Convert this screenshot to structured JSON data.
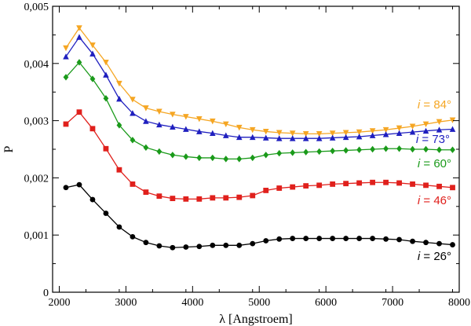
{
  "chart_data": {
    "type": "line",
    "title": "",
    "xlabel": "λ [Angstroem]",
    "ylabel": "P",
    "xlim": [
      1900,
      8000
    ],
    "ylim": [
      0,
      0.005
    ],
    "xticks": [
      2000,
      3000,
      4000,
      5000,
      6000,
      7000,
      8000
    ],
    "xtick_labels": [
      "2000",
      "3000",
      "4000",
      "5000",
      "6000",
      "7000",
      "8000"
    ],
    "yticks": [
      0,
      0.001,
      0.002,
      0.003,
      0.004,
      0.005
    ],
    "ytick_labels": [
      "0",
      "0,001",
      "0,002",
      "0,003",
      "0,004",
      "0,005"
    ],
    "x_minor_step": 500,
    "y_minor_step": 0.0005,
    "grid": false,
    "x": [
      2100,
      2300,
      2500,
      2700,
      2900,
      3100,
      3300,
      3500,
      3700,
      3900,
      4100,
      4300,
      4500,
      4700,
      4900,
      5100,
      5300,
      5500,
      5700,
      5900,
      6100,
      6300,
      6500,
      6700,
      6900,
      7100,
      7300,
      7500,
      7700,
      7900
    ],
    "series": [
      {
        "name": "i = 84°",
        "label_prefix": "i",
        "label_suffix": " = 84°",
        "color": "#f5a623",
        "marker": "triangle-down",
        "values": [
          0.00427,
          0.00462,
          0.00432,
          0.00402,
          0.00365,
          0.00337,
          0.00322,
          0.00316,
          0.00311,
          0.00307,
          0.00303,
          0.00299,
          0.00294,
          0.00288,
          0.00284,
          0.00281,
          0.00279,
          0.00278,
          0.00277,
          0.00277,
          0.00278,
          0.00279,
          0.0028,
          0.00282,
          0.00284,
          0.00287,
          0.0029,
          0.00294,
          0.00298,
          0.00301
        ]
      },
      {
        "name": "i = 73°",
        "label_prefix": "i",
        "label_suffix": " = 73°",
        "color": "#1f1fbf",
        "marker": "triangle-up",
        "values": [
          0.00412,
          0.00446,
          0.00417,
          0.0038,
          0.00338,
          0.00313,
          0.00299,
          0.00293,
          0.00289,
          0.00285,
          0.00281,
          0.00278,
          0.00274,
          0.00271,
          0.00271,
          0.0027,
          0.00269,
          0.00269,
          0.00269,
          0.00269,
          0.0027,
          0.00271,
          0.00272,
          0.00274,
          0.00276,
          0.00278,
          0.0028,
          0.00282,
          0.00284,
          0.00285
        ]
      },
      {
        "name": "i = 60°",
        "label_prefix": "i",
        "label_suffix": " = 60°",
        "color": "#1a9a1a",
        "marker": "diamond",
        "values": [
          0.00376,
          0.00402,
          0.00373,
          0.00339,
          0.00292,
          0.00266,
          0.00253,
          0.00246,
          0.0024,
          0.00237,
          0.00235,
          0.00235,
          0.00233,
          0.00233,
          0.00235,
          0.0024,
          0.00243,
          0.00244,
          0.00245,
          0.00246,
          0.00247,
          0.00248,
          0.00249,
          0.0025,
          0.00251,
          0.00251,
          0.0025,
          0.0025,
          0.00249,
          0.00249
        ]
      },
      {
        "name": "i = 46°",
        "label_prefix": "i",
        "label_suffix": " = 46°",
        "color": "#e0201c",
        "marker": "square",
        "values": [
          0.00294,
          0.00315,
          0.00286,
          0.00251,
          0.00214,
          0.00189,
          0.00175,
          0.00168,
          0.00164,
          0.00163,
          0.00163,
          0.00165,
          0.00165,
          0.00166,
          0.00169,
          0.00178,
          0.00182,
          0.00184,
          0.00186,
          0.00187,
          0.00189,
          0.0019,
          0.00191,
          0.00192,
          0.00192,
          0.00191,
          0.00189,
          0.00187,
          0.00185,
          0.00183
        ]
      },
      {
        "name": "i = 26°",
        "label_prefix": "i",
        "label_suffix": " = 26°",
        "color": "#000000",
        "marker": "circle",
        "values": [
          0.00183,
          0.00188,
          0.00162,
          0.00138,
          0.00114,
          0.00097,
          0.00087,
          0.00081,
          0.00078,
          0.00079,
          0.0008,
          0.00082,
          0.00082,
          0.00082,
          0.00085,
          0.0009,
          0.00093,
          0.00094,
          0.00094,
          0.00094,
          0.00094,
          0.00094,
          0.00094,
          0.00094,
          0.00093,
          0.00092,
          0.00089,
          0.00087,
          0.00085,
          0.00083
        ]
      }
    ]
  }
}
